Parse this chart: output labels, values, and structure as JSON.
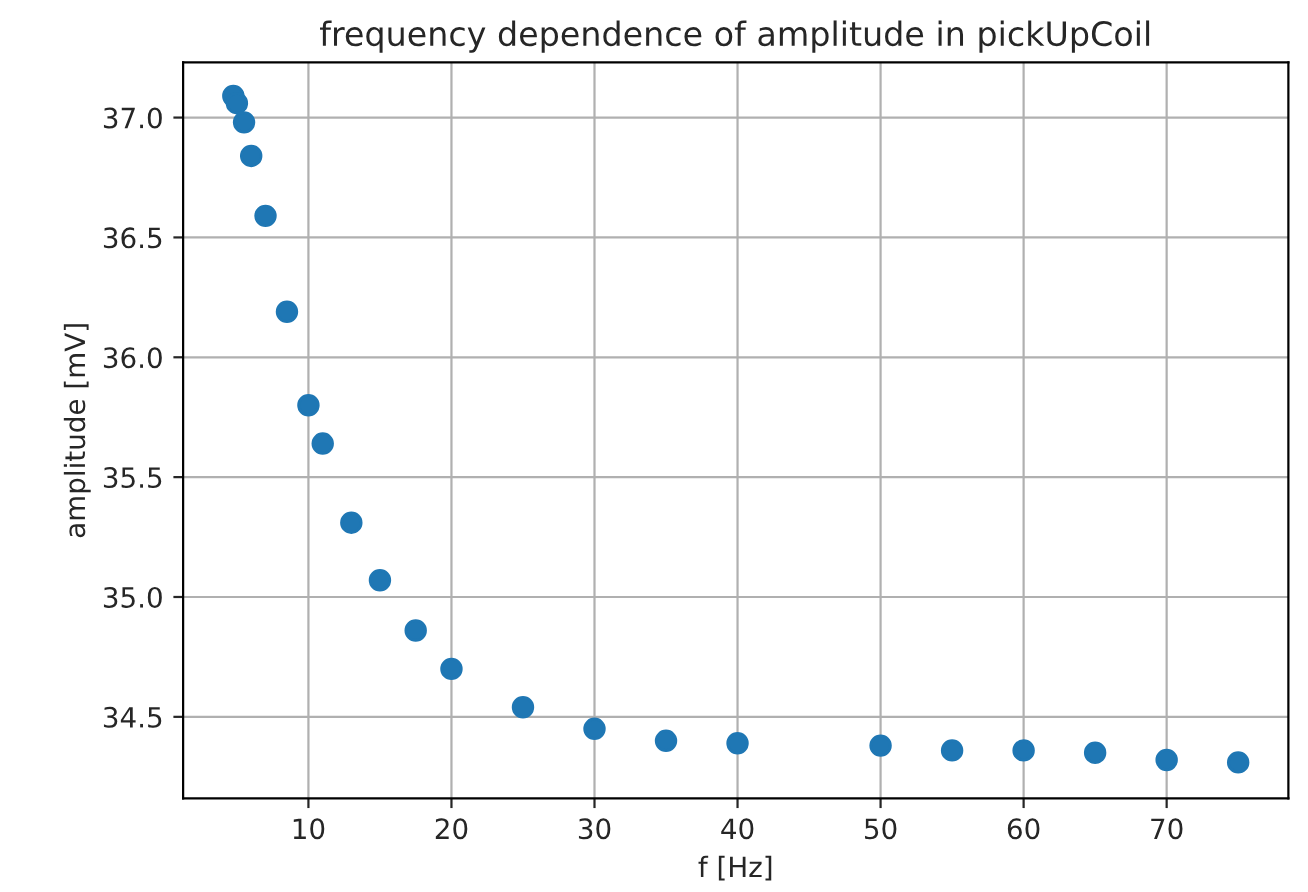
{
  "chart_data": {
    "type": "scatter",
    "title": "frequency dependence of amplitude in pickUpCoil",
    "xlabel": "f [Hz]",
    "ylabel": "amplitude [mV]",
    "x": [
      4.75,
      5,
      5.5,
      6,
      7,
      8.5,
      10,
      11,
      13,
      15,
      17.5,
      20,
      25,
      30,
      35,
      40,
      50,
      55,
      60,
      65,
      70,
      75
    ],
    "series": [
      {
        "color": "#1f77b4",
        "values": [
          37.09,
          37.06,
          36.98,
          36.84,
          36.59,
          36.19,
          35.8,
          35.64,
          35.31,
          35.07,
          34.86,
          34.7,
          34.54,
          34.45,
          34.4,
          34.39,
          34.38,
          34.36,
          34.36,
          34.35,
          34.32,
          34.31
        ]
      }
    ],
    "xlim": [
      1.24,
      78.51
    ],
    "ylim": [
      34.16,
      37.23
    ],
    "xticks": [
      10,
      20,
      30,
      40,
      50,
      60,
      70
    ],
    "yticks": [
      {
        "value": 34.5,
        "label": "34.5"
      },
      {
        "value": 35,
        "label": "35.0"
      },
      {
        "value": 35.5,
        "label": "35.5"
      },
      {
        "value": 36,
        "label": "36.0"
      },
      {
        "value": 36.5,
        "label": "36.5"
      },
      {
        "value": 37,
        "label": "37.0"
      }
    ],
    "grid": true,
    "marker": "circle"
  }
}
